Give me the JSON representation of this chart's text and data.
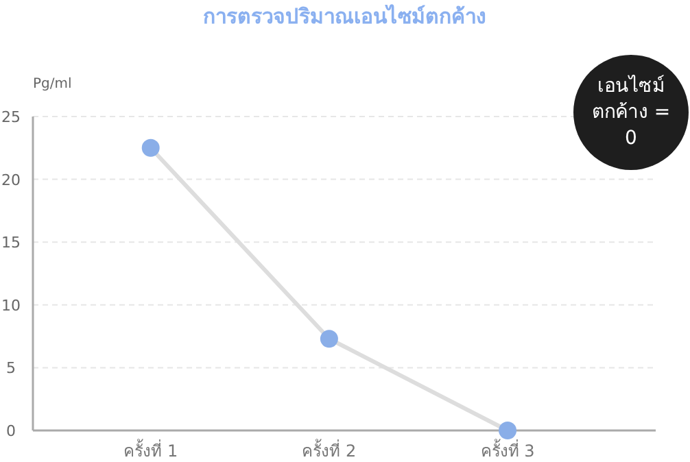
{
  "chart_data": {
    "type": "line",
    "title": "การตรวจปริมาณเอนไซม์ตกค้าง",
    "ylabel": "Pg/ml",
    "categories": [
      "ครั้งที่ 1",
      "ครั้งที่ 2",
      "ครั้งที่ 3"
    ],
    "series": [
      {
        "color": "#dddddd",
        "colors": [
          "#8aaee8",
          "#8aaee8",
          "#8aaee8"
        ],
        "values": [
          22.5,
          7.3,
          0
        ]
      }
    ],
    "marker": "circle",
    "ylim": [
      0,
      25
    ],
    "yticks": [
      0,
      5,
      10,
      15,
      20,
      25
    ],
    "grid": "y",
    "annotations": [
      "เอนไซม์ตกค้าง = 0"
    ]
  }
}
